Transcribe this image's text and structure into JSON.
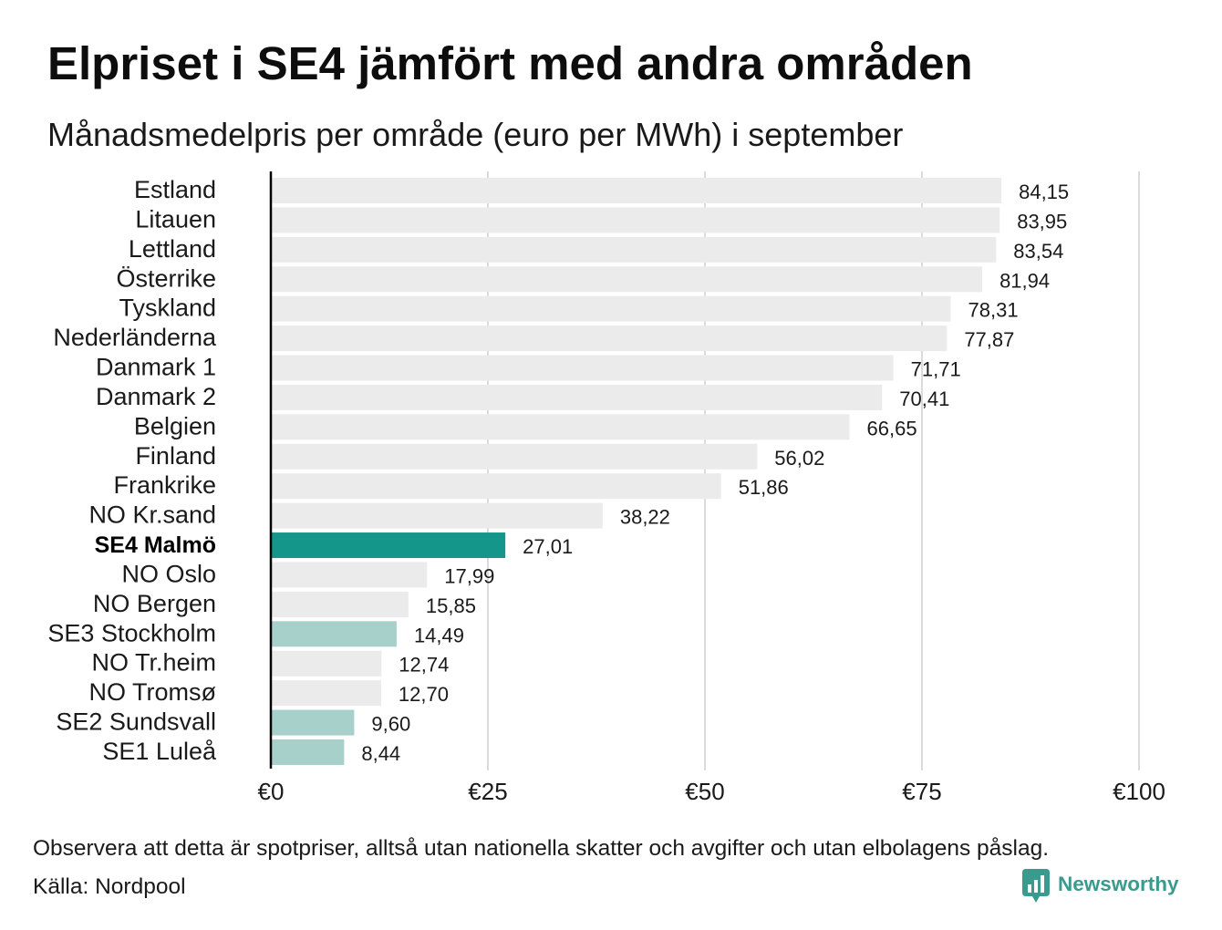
{
  "chart_data": {
    "type": "bar",
    "orientation": "horizontal",
    "title": "Elpriset i SE4 jämfört med andra områden",
    "subtitle": "Månadsmedelpris per område (euro per MWh) i september",
    "xlim": [
      0,
      100
    ],
    "x_ticks": [
      0,
      25,
      50,
      75,
      100
    ],
    "x_tick_labels": [
      "€0",
      "€25",
      "€50",
      "€75",
      "€100"
    ],
    "grid": true,
    "categories": [
      "Estland",
      "Litauen",
      "Lettland",
      "Österrike",
      "Tyskland",
      "Nederländerna",
      "Danmark 1",
      "Danmark 2",
      "Belgien",
      "Finland",
      "Frankrike",
      "NO Kr.sand",
      "SE4 Malmö",
      "NO Oslo",
      "NO Bergen",
      "SE3 Stockholm",
      "NO Tr.heim",
      "NO Tromsø",
      "SE2 Sundsvall",
      "SE1 Luleå"
    ],
    "values": [
      84.15,
      83.95,
      83.54,
      81.94,
      78.31,
      77.87,
      71.71,
      70.41,
      66.65,
      56.02,
      51.86,
      38.22,
      27.01,
      17.99,
      15.85,
      14.49,
      12.74,
      12.7,
      9.6,
      8.44
    ],
    "value_labels": [
      "84,15",
      "83,95",
      "83,54",
      "81,94",
      "78,31",
      "77,87",
      "71,71",
      "70,41",
      "66,65",
      "56,02",
      "51,86",
      "38,22",
      "27,01",
      "17,99",
      "15,85",
      "14,49",
      "12,74",
      "12,70",
      "9,60",
      "8,44"
    ],
    "bar_colors": [
      "#ebebeb",
      "#ebebeb",
      "#ebebeb",
      "#ebebeb",
      "#ebebeb",
      "#ebebeb",
      "#ebebeb",
      "#ebebeb",
      "#ebebeb",
      "#ebebeb",
      "#ebebeb",
      "#ebebeb",
      "#14968a",
      "#ebebeb",
      "#ebebeb",
      "#a7d0ca",
      "#ebebeb",
      "#ebebeb",
      "#a7d0ca",
      "#a7d0ca"
    ],
    "highlight_color": "#14968a"
  },
  "footer": {
    "note": "Observera att detta är spotpriser, alltså utan nationella skatter och avgifter och utan elbolagens påslag.",
    "source": "Källa: Nordpool"
  },
  "brand": {
    "name": "Newsworthy",
    "logo_icon": "chart-bubble-icon",
    "color": "#3a9a8d"
  }
}
